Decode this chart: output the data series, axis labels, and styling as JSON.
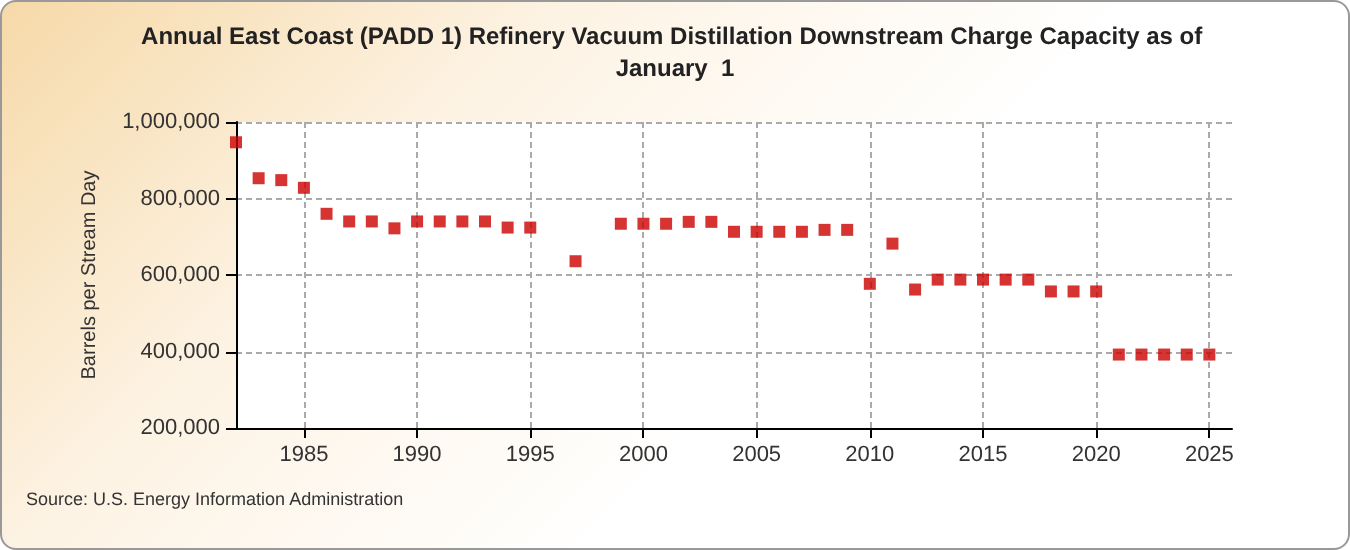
{
  "chart_data": {
    "type": "scatter",
    "title": "Annual East Coast (PADD 1) Refinery Vacuum Distillation Downstream Charge Capacity as of January  1",
    "ylabel": "Barrels per Stream Day",
    "annotations": [
      "Source: U.S. Energy Information Administration"
    ],
    "x": [
      1982,
      1983,
      1984,
      1985,
      1986,
      1987,
      1988,
      1989,
      1990,
      1991,
      1992,
      1993,
      1994,
      1995,
      1997,
      1999,
      2000,
      2001,
      2002,
      2003,
      2004,
      2005,
      2006,
      2007,
      2008,
      2009,
      2010,
      2011,
      2012,
      2013,
      2014,
      2015,
      2016,
      2017,
      2018,
      2019,
      2020,
      2021,
      2022,
      2023,
      2024,
      2025
    ],
    "series": [
      {
        "color": "#cc0000",
        "values": [
          947000,
          853000,
          848000,
          828000,
          760000,
          740000,
          740000,
          722000,
          740000,
          740000,
          740000,
          740000,
          724000,
          724000,
          636000,
          734000,
          734000,
          734000,
          739000,
          739000,
          713000,
          713000,
          713000,
          713000,
          718000,
          718000,
          577000,
          682000,
          562000,
          588000,
          588000,
          588000,
          588000,
          588000,
          557000,
          557000,
          557000,
          392000,
          392000,
          392000,
          392000,
          392000
        ]
      }
    ],
    "xlim": [
      1982,
      2026
    ],
    "xticks": [
      1985,
      1990,
      1995,
      2000,
      2005,
      2010,
      2015,
      2020,
      2025
    ],
    "ylim": [
      200000,
      1000000
    ],
    "yticks": [
      {
        "value": 200000,
        "label": "200,000"
      },
      {
        "value": 400000,
        "label": "400,000"
      },
      {
        "value": 600000,
        "label": "600,000"
      },
      {
        "value": 800000,
        "label": "800,000"
      },
      {
        "value": 1000000,
        "label": "1,000,000"
      }
    ],
    "grid": true,
    "marker": "square"
  }
}
